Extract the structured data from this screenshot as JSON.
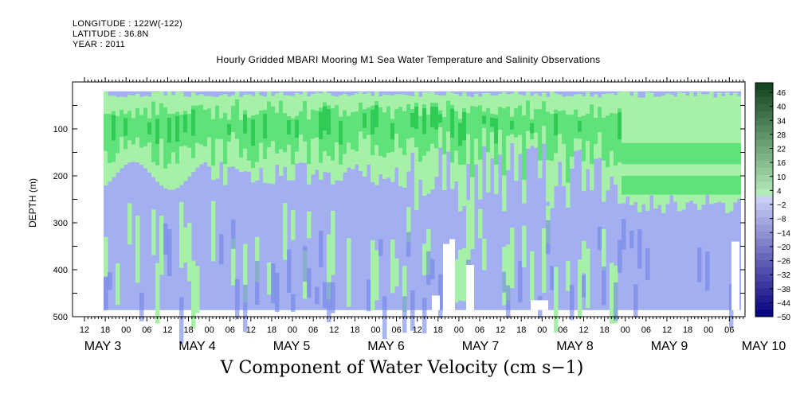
{
  "header": {
    "longitude_label": "LONGITUDE : 122W(-122)",
    "latitude_label": "LATITUDE : 36.8N",
    "year_label": "YEAR : 2011"
  },
  "chart_data": {
    "type": "heatmap",
    "title": "Hourly Gridded MBARI Mooring M1 Sea Water Temperature and Salinity Observations",
    "variable_label": "V Component of Water Velocity (cm s−1)",
    "ylabel": "DEPTH (m)",
    "ylim": [
      500,
      0
    ],
    "y_ticks": [
      100,
      200,
      300,
      400,
      500
    ],
    "x_hour_ticks": [
      "12",
      "18",
      "00",
      "06",
      "12",
      "18",
      "00",
      "06",
      "12",
      "18",
      "00",
      "06",
      "12",
      "18",
      "00",
      "06",
      "12",
      "18",
      "00",
      "06",
      "12",
      "18",
      "00",
      "06",
      "12",
      "18",
      "00",
      "06",
      "12",
      "18",
      "00",
      "06"
    ],
    "x_day_labels": [
      "MAY  3",
      "MAY  4",
      "MAY  5",
      "MAY  6",
      "MAY  7",
      "MAY  8",
      "MAY  9",
      "MAY 10"
    ],
    "colorbar": {
      "labels": [
        "46",
        "40",
        "34",
        "28",
        "22",
        "16",
        "10",
        "4",
        "−2",
        "−8",
        "−14",
        "−20",
        "−26",
        "−32",
        "−38",
        "−44",
        "−50"
      ],
      "range": [
        -50,
        49
      ]
    },
    "data_extent": {
      "depth_min": 20,
      "depth_max": 486
    },
    "colors": {
      "negative_base": "#a3aff0",
      "negative_deep": "#6f83e6",
      "positive_light": "#a6f0a8",
      "positive_mid": "#5fe27a",
      "positive_strong": "#2fcb55"
    }
  }
}
